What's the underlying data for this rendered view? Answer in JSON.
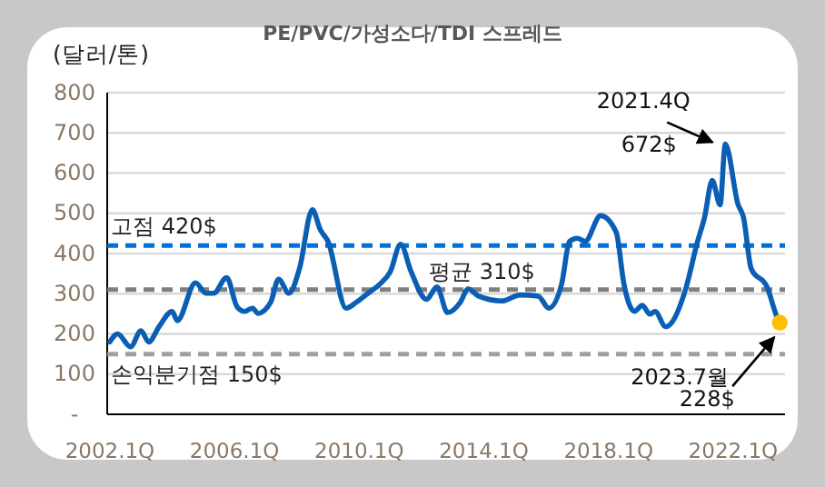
{
  "chart_data": {
    "type": "line",
    "title": "PE/PVC/가성소다/TDI 스프레드",
    "ylabel": "(달러/톤)",
    "x": [
      "2002-01",
      "2002-04",
      "2002-09",
      "2003-01",
      "2003-04",
      "2003-08",
      "2004-01",
      "2004-03",
      "2004-10",
      "2005-02",
      "2005-05",
      "2005-10",
      "2006-02",
      "2006-05",
      "2006-08",
      "2006-10",
      "2007-03",
      "2007-06",
      "2007-10",
      "2008-02",
      "2008-07",
      "2008-10",
      "2009-01",
      "2009-08",
      "2009-12",
      "2010-04",
      "2010-09",
      "2011-01",
      "2011-05",
      "2011-09",
      "2012-03",
      "2012-07",
      "2012-11",
      "2013-04",
      "2013-07",
      "2013-11",
      "2014-08",
      "2015-03",
      "2015-10",
      "2016-02",
      "2016-07",
      "2016-10",
      "2017-01",
      "2017-04",
      "2017-10",
      "2018-04",
      "2018-07",
      "2018-11",
      "2019-02",
      "2019-05",
      "2019-07",
      "2019-11",
      "2020-07",
      "2020-11",
      "2021-02",
      "2021-05",
      "2021-08",
      "2021-10",
      "2022-03",
      "2022-05",
      "2022-08",
      "2023-02",
      "2023-06",
      "2023-07"
    ],
    "series": [
      {
        "color": "#0a5fb4",
        "values": [
          180,
          200,
          168,
          208,
          180,
          218,
          256,
          233,
          327,
          301,
          301,
          340,
          267,
          256,
          264,
          251,
          279,
          336,
          301,
          362,
          509,
          460,
          430,
          264,
          279,
          299,
          324,
          355,
          423,
          355,
          286,
          317,
          253,
          279,
          312,
          294,
          282,
          297,
          294,
          264,
          324,
          430,
          438,
          430,
          494,
          453,
          324,
          256,
          271,
          249,
          256,
          218,
          317,
          423,
          491,
          582,
          521,
          672,
          521,
          491,
          362,
          317,
          241,
          228
        ]
      },
      {
        "type": "scatter",
        "color": "#ffc000",
        "marker": "circle",
        "x": [
          "2023-07"
        ],
        "values": [
          228
        ]
      }
    ],
    "xlim": [
      "2001-12",
      "2023-09"
    ],
    "xticks": [
      {
        "value": "2002-01",
        "label": "2002.1Q"
      },
      {
        "value": "2006-01",
        "label": "2006.1Q"
      },
      {
        "value": "2010-01",
        "label": "2010.1Q"
      },
      {
        "value": "2014-01",
        "label": "2014.1Q"
      },
      {
        "value": "2018-01",
        "label": "2018.1Q"
      },
      {
        "value": "2022-01",
        "label": "2022.1Q"
      }
    ],
    "ylim": [
      0,
      800
    ],
    "yticks": [
      {
        "value": 0,
        "label": "-"
      },
      100,
      200,
      300,
      400,
      500,
      600,
      700,
      800
    ],
    "grid": "y",
    "line_style": "solid",
    "ref_lines": [
      {
        "axis": "y",
        "value": 420,
        "label": "고점 420$",
        "color": "#0070d8",
        "line_style": "dashed"
      },
      {
        "axis": "y",
        "value": 310,
        "label": "평균 310$",
        "color": "#7f7f7f",
        "line_style": "dashed"
      },
      {
        "axis": "y",
        "value": 150,
        "label": "손익분기점 150$",
        "color": "#a0a0a0",
        "line_style": "dashed"
      }
    ],
    "annotations": [
      {
        "text": "2021.4Q",
        "x": "2021-10",
        "y": 672
      },
      {
        "text": "672$",
        "x": "2021-10",
        "y": 672
      },
      {
        "text": "2023.7월",
        "x": "2023-07",
        "y": 228
      },
      {
        "text": "228$",
        "x": "2023-07",
        "y": 228
      }
    ]
  }
}
